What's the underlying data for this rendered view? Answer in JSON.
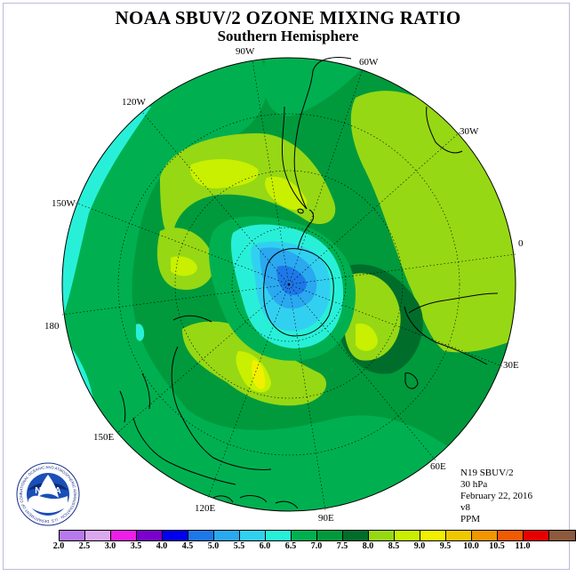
{
  "title": "NOAA SBUV/2 OZONE MIXING RATIO",
  "subtitle": "Southern Hemisphere",
  "longitude_labels": {
    "lon_90w": "90W",
    "lon_60w": "60W",
    "lon_30w": "30W",
    "lon_0": "0",
    "lon_30e": "30E",
    "lon_60e": "60E",
    "lon_90e": "90E",
    "lon_120e": "120E",
    "lon_150e": "150E",
    "lon_180": "180",
    "lon_150w": "150W",
    "lon_120w": "120W"
  },
  "info": {
    "satellite": "N19 SBUV/2",
    "level": "30 hPa",
    "date": "February 22, 2016",
    "version": "v8",
    "units": "PPM"
  },
  "colorbar": {
    "labels": [
      "2.0",
      "2.5",
      "3.0",
      "3.5",
      "4.0",
      "4.5",
      "5.0",
      "5.5",
      "6.0",
      "6.5",
      "7.0",
      "7.5",
      "8.0",
      "8.5",
      "9.0",
      "9.5",
      "10.0",
      "10.5",
      "11.0"
    ],
    "colors": [
      "#b77aec",
      "#dba8f0",
      "#ee1ee8",
      "#7a00cc",
      "#0000ee",
      "#1e78e8",
      "#2aa8f0",
      "#32d0f0",
      "#28f0d8",
      "#00b050",
      "#009a3c",
      "#006e2a",
      "#96d814",
      "#c8f000",
      "#f0f000",
      "#f0c800",
      "#f09600",
      "#f05a00",
      "#e80000",
      "#8c5a3c"
    ],
    "fill_scale": {
      "6.0": "#28f0d8",
      "6.5": "#00b050",
      "7.0": "#009a3c",
      "7.5": "#006e2a",
      "8.0": "#96d814",
      "8.5": "#c8f000",
      "9.0": "#f0f000",
      "low_5.5": "#32d0f0",
      "low_5.0": "#2aa8f0",
      "low_4.5": "#1e78e8"
    }
  },
  "logo": {
    "text": "NOAA",
    "ring_text": "NATIONAL OCEANIC AND ATMOSPHERIC ADMINISTRATION · U.S. DEPARTMENT OF COMMERCE"
  }
}
